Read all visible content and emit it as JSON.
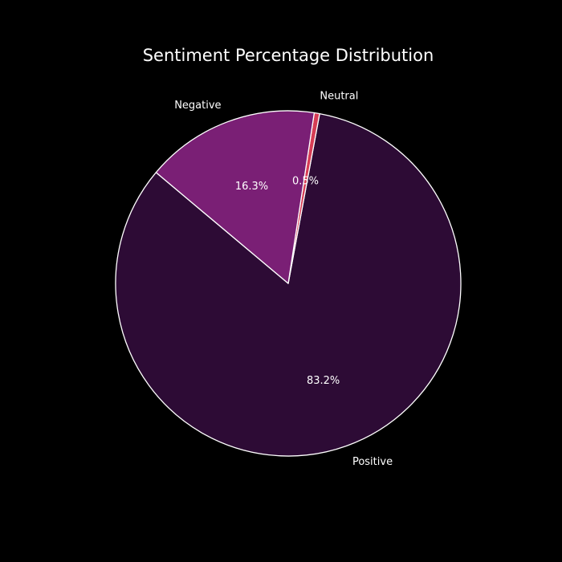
{
  "chart_data": {
    "type": "pie",
    "title": "Sentiment Percentage Distribution",
    "start_angle_deg": 140,
    "direction": "counterclockwise",
    "edge_color": "#ffffff",
    "background": "#000000",
    "slices": [
      {
        "label": "Positive",
        "value": 83.2,
        "pct_label": "83.2%",
        "color": "#2d0b35"
      },
      {
        "label": "Neutral",
        "value": 0.5,
        "pct_label": "0.5%",
        "color": "#d63d55"
      },
      {
        "label": "Negative",
        "value": 16.3,
        "pct_label": "16.3%",
        "color": "#7a1f75"
      }
    ]
  }
}
